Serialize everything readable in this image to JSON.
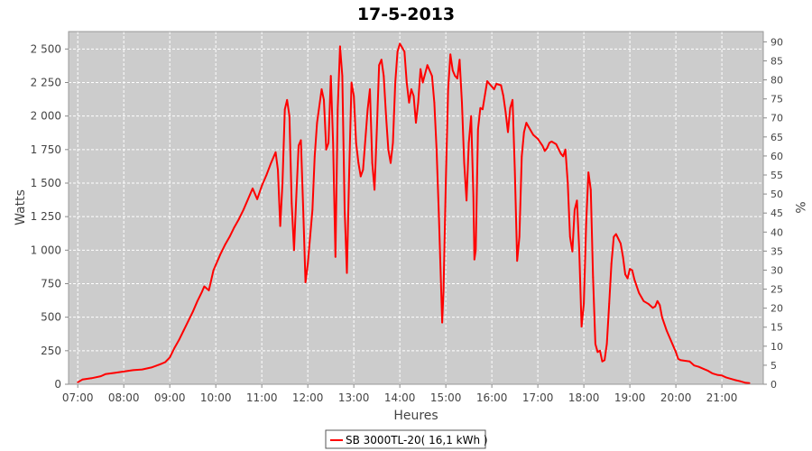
{
  "chart_data": {
    "type": "line",
    "title": "17-5-2013",
    "xlabel": "Heures",
    "ylabel": "Watts",
    "y2label": "%",
    "xlim": [
      6.8,
      21.9
    ],
    "ylim": [
      0,
      2630
    ],
    "y2lim": [
      0,
      92.7
    ],
    "x_ticks": [
      {
        "value": 7,
        "label": "07:00"
      },
      {
        "value": 8,
        "label": "08:00"
      },
      {
        "value": 9,
        "label": "09:00"
      },
      {
        "value": 10,
        "label": "10:00"
      },
      {
        "value": 11,
        "label": "11:00"
      },
      {
        "value": 12,
        "label": "12:00"
      },
      {
        "value": 13,
        "label": "13:00"
      },
      {
        "value": 14,
        "label": "14:00"
      },
      {
        "value": 15,
        "label": "15:00"
      },
      {
        "value": 16,
        "label": "16:00"
      },
      {
        "value": 17,
        "label": "17:00"
      },
      {
        "value": 18,
        "label": "18:00"
      },
      {
        "value": 19,
        "label": "19:00"
      },
      {
        "value": 20,
        "label": "20:00"
      },
      {
        "value": 21,
        "label": "21:00"
      }
    ],
    "y_ticks": [
      {
        "value": 0,
        "label": "0"
      },
      {
        "value": 250,
        "label": "250"
      },
      {
        "value": 500,
        "label": "500"
      },
      {
        "value": 750,
        "label": "750"
      },
      {
        "value": 1000,
        "label": "1 000"
      },
      {
        "value": 1250,
        "label": "1 250"
      },
      {
        "value": 1500,
        "label": "1 500"
      },
      {
        "value": 1750,
        "label": "1 750"
      },
      {
        "value": 2000,
        "label": "2 000"
      },
      {
        "value": 2250,
        "label": "2 250"
      },
      {
        "value": 2500,
        "label": "2 500"
      }
    ],
    "y2_ticks": [
      {
        "value": 0,
        "label": "0"
      },
      {
        "value": 5,
        "label": "5"
      },
      {
        "value": 10,
        "label": "10"
      },
      {
        "value": 15,
        "label": "15"
      },
      {
        "value": 20,
        "label": "20"
      },
      {
        "value": 25,
        "label": "25"
      },
      {
        "value": 30,
        "label": "30"
      },
      {
        "value": 35,
        "label": "35"
      },
      {
        "value": 40,
        "label": "40"
      },
      {
        "value": 45,
        "label": "45"
      },
      {
        "value": 50,
        "label": "50"
      },
      {
        "value": 55,
        "label": "55"
      },
      {
        "value": 60,
        "label": "60"
      },
      {
        "value": 65,
        "label": "65"
      },
      {
        "value": 70,
        "label": "70"
      },
      {
        "value": 75,
        "label": "75"
      },
      {
        "value": 80,
        "label": "80"
      },
      {
        "value": 85,
        "label": "85"
      },
      {
        "value": 90,
        "label": "90"
      }
    ],
    "grid": true,
    "legend": "bottom-center",
    "series": [
      {
        "name": "SB 3000TL-20( 16,1 kWh )",
        "color": "#ff0000",
        "points": [
          [
            7.0,
            15
          ],
          [
            7.1,
            35
          ],
          [
            7.3,
            45
          ],
          [
            7.5,
            60
          ],
          [
            7.6,
            75
          ],
          [
            7.8,
            85
          ],
          [
            8.0,
            95
          ],
          [
            8.2,
            105
          ],
          [
            8.4,
            110
          ],
          [
            8.6,
            125
          ],
          [
            8.8,
            150
          ],
          [
            8.9,
            165
          ],
          [
            9.0,
            200
          ],
          [
            9.1,
            270
          ],
          [
            9.2,
            330
          ],
          [
            9.3,
            400
          ],
          [
            9.4,
            470
          ],
          [
            9.5,
            540
          ],
          [
            9.6,
            620
          ],
          [
            9.7,
            690
          ],
          [
            9.75,
            730
          ],
          [
            9.85,
            700
          ],
          [
            9.95,
            850
          ],
          [
            10.1,
            970
          ],
          [
            10.2,
            1040
          ],
          [
            10.3,
            1100
          ],
          [
            10.4,
            1170
          ],
          [
            10.5,
            1230
          ],
          [
            10.6,
            1300
          ],
          [
            10.7,
            1380
          ],
          [
            10.8,
            1460
          ],
          [
            10.9,
            1380
          ],
          [
            11.0,
            1480
          ],
          [
            11.1,
            1560
          ],
          [
            11.2,
            1650
          ],
          [
            11.3,
            1730
          ],
          [
            11.35,
            1600
          ],
          [
            11.4,
            1180
          ],
          [
            11.45,
            1500
          ],
          [
            11.5,
            2050
          ],
          [
            11.55,
            2120
          ],
          [
            11.6,
            2000
          ],
          [
            11.65,
            1350
          ],
          [
            11.7,
            1000
          ],
          [
            11.75,
            1400
          ],
          [
            11.8,
            1780
          ],
          [
            11.85,
            1820
          ],
          [
            11.9,
            1300
          ],
          [
            11.95,
            760
          ],
          [
            12.0,
            900
          ],
          [
            12.1,
            1300
          ],
          [
            12.15,
            1700
          ],
          [
            12.2,
            1950
          ],
          [
            12.3,
            2200
          ],
          [
            12.35,
            2120
          ],
          [
            12.4,
            1750
          ],
          [
            12.45,
            1800
          ],
          [
            12.5,
            2300
          ],
          [
            12.55,
            1800
          ],
          [
            12.6,
            950
          ],
          [
            12.65,
            2050
          ],
          [
            12.7,
            2520
          ],
          [
            12.75,
            2300
          ],
          [
            12.8,
            1300
          ],
          [
            12.85,
            830
          ],
          [
            12.9,
            1600
          ],
          [
            12.95,
            2250
          ],
          [
            13.0,
            2150
          ],
          [
            13.05,
            1800
          ],
          [
            13.1,
            1650
          ],
          [
            13.15,
            1550
          ],
          [
            13.2,
            1600
          ],
          [
            13.3,
            2050
          ],
          [
            13.35,
            2200
          ],
          [
            13.4,
            1650
          ],
          [
            13.45,
            1450
          ],
          [
            13.5,
            1900
          ],
          [
            13.55,
            2380
          ],
          [
            13.6,
            2420
          ],
          [
            13.65,
            2300
          ],
          [
            13.7,
            2000
          ],
          [
            13.75,
            1750
          ],
          [
            13.8,
            1650
          ],
          [
            13.85,
            1800
          ],
          [
            13.9,
            2250
          ],
          [
            13.95,
            2480
          ],
          [
            14.0,
            2540
          ],
          [
            14.1,
            2480
          ],
          [
            14.15,
            2250
          ],
          [
            14.2,
            2100
          ],
          [
            14.25,
            2200
          ],
          [
            14.3,
            2150
          ],
          [
            14.35,
            1950
          ],
          [
            14.4,
            2100
          ],
          [
            14.45,
            2350
          ],
          [
            14.5,
            2250
          ],
          [
            14.6,
            2380
          ],
          [
            14.7,
            2300
          ],
          [
            14.75,
            2100
          ],
          [
            14.8,
            1750
          ],
          [
            14.85,
            1250
          ],
          [
            14.9,
            700
          ],
          [
            14.92,
            460
          ],
          [
            14.95,
            700
          ],
          [
            15.0,
            1500
          ],
          [
            15.05,
            2200
          ],
          [
            15.1,
            2460
          ],
          [
            15.15,
            2340
          ],
          [
            15.2,
            2300
          ],
          [
            15.25,
            2280
          ],
          [
            15.3,
            2420
          ],
          [
            15.35,
            2100
          ],
          [
            15.4,
            1650
          ],
          [
            15.45,
            1370
          ],
          [
            15.5,
            1800
          ],
          [
            15.55,
            2000
          ],
          [
            15.6,
            1400
          ],
          [
            15.62,
            930
          ],
          [
            15.65,
            1000
          ],
          [
            15.7,
            1900
          ],
          [
            15.75,
            2060
          ],
          [
            15.8,
            2050
          ],
          [
            15.9,
            2260
          ],
          [
            16.0,
            2220
          ],
          [
            16.05,
            2200
          ],
          [
            16.1,
            2240
          ],
          [
            16.2,
            2230
          ],
          [
            16.25,
            2150
          ],
          [
            16.3,
            2030
          ],
          [
            16.35,
            1880
          ],
          [
            16.4,
            2060
          ],
          [
            16.45,
            2120
          ],
          [
            16.5,
            1600
          ],
          [
            16.55,
            920
          ],
          [
            16.6,
            1100
          ],
          [
            16.65,
            1700
          ],
          [
            16.7,
            1880
          ],
          [
            16.75,
            1950
          ],
          [
            16.8,
            1920
          ],
          [
            16.9,
            1860
          ],
          [
            17.0,
            1830
          ],
          [
            17.1,
            1780
          ],
          [
            17.15,
            1740
          ],
          [
            17.2,
            1760
          ],
          [
            17.25,
            1800
          ],
          [
            17.3,
            1810
          ],
          [
            17.4,
            1790
          ],
          [
            17.5,
            1720
          ],
          [
            17.55,
            1700
          ],
          [
            17.6,
            1750
          ],
          [
            17.65,
            1500
          ],
          [
            17.7,
            1100
          ],
          [
            17.75,
            990
          ],
          [
            17.8,
            1300
          ],
          [
            17.85,
            1370
          ],
          [
            17.9,
            1000
          ],
          [
            17.95,
            430
          ],
          [
            18.0,
            600
          ],
          [
            18.05,
            1200
          ],
          [
            18.1,
            1580
          ],
          [
            18.15,
            1450
          ],
          [
            18.2,
            800
          ],
          [
            18.25,
            300
          ],
          [
            18.3,
            240
          ],
          [
            18.35,
            250
          ],
          [
            18.4,
            170
          ],
          [
            18.45,
            180
          ],
          [
            18.5,
            300
          ],
          [
            18.55,
            600
          ],
          [
            18.6,
            900
          ],
          [
            18.65,
            1100
          ],
          [
            18.7,
            1120
          ],
          [
            18.8,
            1050
          ],
          [
            18.85,
            950
          ],
          [
            18.9,
            820
          ],
          [
            18.95,
            790
          ],
          [
            19.0,
            860
          ],
          [
            19.05,
            850
          ],
          [
            19.1,
            780
          ],
          [
            19.2,
            680
          ],
          [
            19.3,
            620
          ],
          [
            19.4,
            600
          ],
          [
            19.5,
            570
          ],
          [
            19.55,
            580
          ],
          [
            19.6,
            620
          ],
          [
            19.65,
            590
          ],
          [
            19.7,
            500
          ],
          [
            19.8,
            400
          ],
          [
            19.9,
            320
          ],
          [
            20.0,
            240
          ],
          [
            20.05,
            190
          ],
          [
            20.1,
            180
          ],
          [
            20.2,
            175
          ],
          [
            20.3,
            170
          ],
          [
            20.4,
            140
          ],
          [
            20.5,
            130
          ],
          [
            20.6,
            115
          ],
          [
            20.7,
            100
          ],
          [
            20.8,
            80
          ],
          [
            20.9,
            70
          ],
          [
            21.0,
            65
          ],
          [
            21.1,
            50
          ],
          [
            21.2,
            40
          ],
          [
            21.3,
            30
          ],
          [
            21.4,
            22
          ],
          [
            21.5,
            12
          ],
          [
            21.6,
            8
          ]
        ]
      }
    ]
  }
}
